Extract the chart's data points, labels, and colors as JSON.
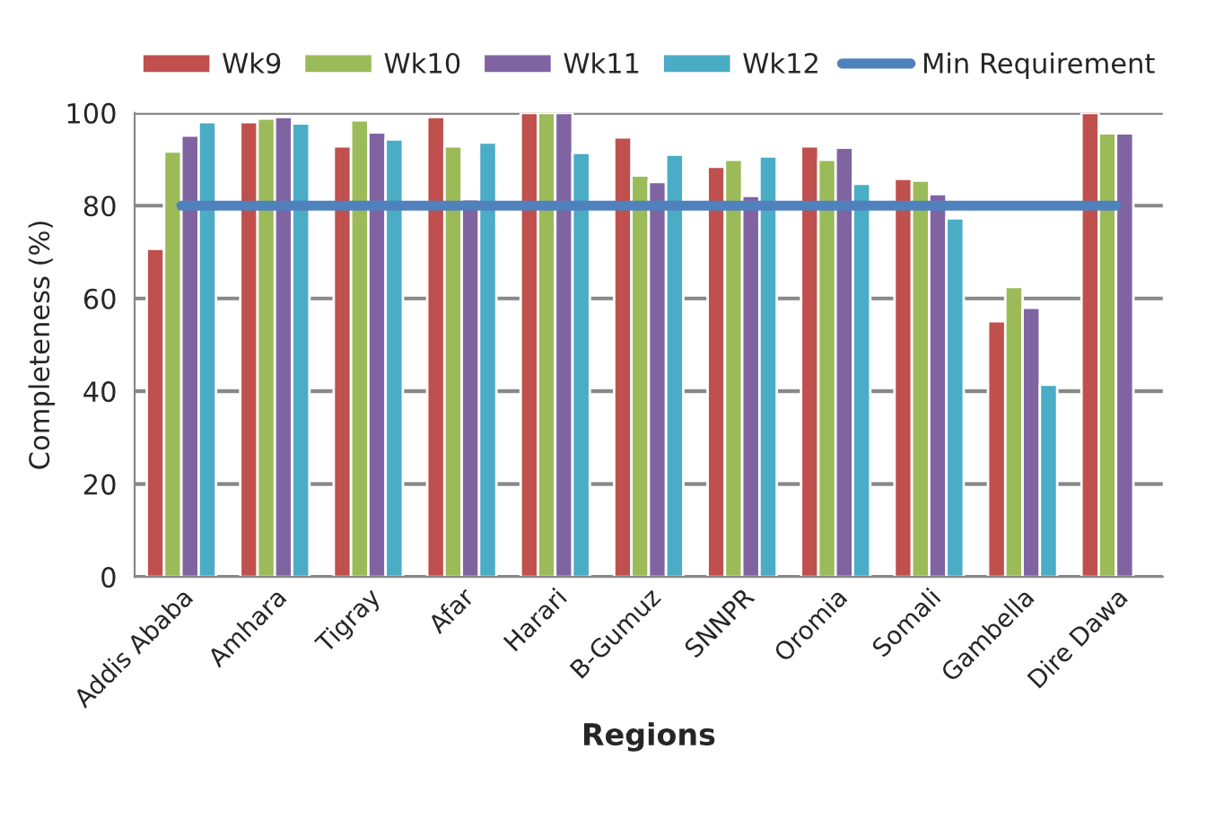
{
  "chart_data": {
    "type": "bar",
    "xlabel": "Regions",
    "ylabel": "Completeness (%)",
    "categories": [
      "Addis Ababa",
      "Amhara",
      "Tigray",
      "Afar",
      "Harari",
      "B-Gumuz",
      "SNNPR",
      "Oromia",
      "Somali",
      "Gambella",
      "Dire Dawa"
    ],
    "series": [
      {
        "name": "Wk9",
        "color": "#c0504d",
        "values": [
          70.7,
          98,
          92.8,
          99.1,
          100,
          94.7,
          88.4,
          92.8,
          85.8,
          55.1,
          100
        ]
      },
      {
        "name": "Wk10",
        "color": "#9bbb59",
        "values": [
          91.7,
          98.8,
          98.4,
          92.8,
          100,
          86.5,
          89.9,
          89.9,
          85.4,
          62.5,
          95.6
        ]
      },
      {
        "name": "Wk11",
        "color": "#8064a2",
        "values": [
          95.1,
          99.1,
          95.8,
          81.4,
          100,
          85.1,
          82.1,
          92.5,
          82.5,
          58,
          95.6
        ]
      },
      {
        "name": "Wk12",
        "color": "#4bacc6",
        "values": [
          98,
          97.7,
          94.3,
          93.6,
          91.4,
          91,
          90.6,
          84.7,
          77.3,
          41.4,
          null
        ]
      },
      {
        "name": "Min Requirement",
        "type": "line",
        "color": "#4f81bd",
        "values": [
          80,
          80,
          80,
          80,
          80,
          80,
          80,
          80,
          80,
          80,
          80
        ]
      }
    ],
    "ylim": [
      0,
      100
    ],
    "yticks": [
      0,
      20,
      40,
      60,
      80,
      100
    ],
    "grid": "y",
    "legend": "top",
    "marker": "none",
    "line_style": "solid"
  }
}
